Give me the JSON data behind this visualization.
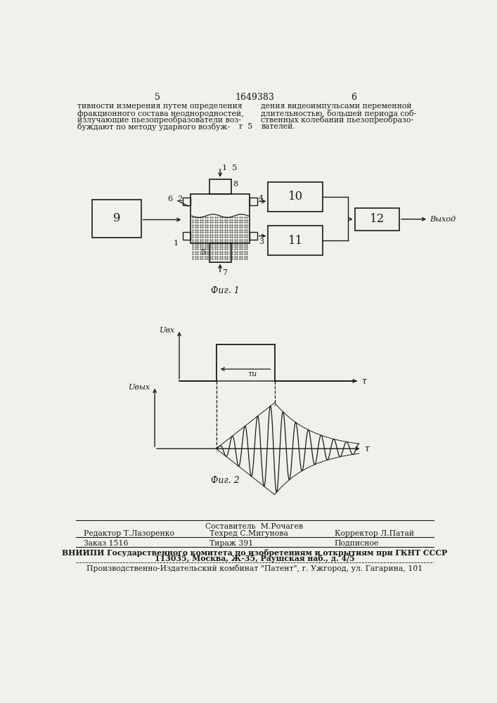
{
  "page_color": "#f2f0ec",
  "text_color": "#1a1a1a",
  "title_text": "1649383",
  "page_num_left": "5",
  "page_num_right": "6",
  "fig1_caption": "Фиг. 1",
  "fig2_caption": "Фиг. 2",
  "header_left_lines": [
    "тивности измерения путем определения",
    "фракционного состава неоднородностей,",
    "излучающие пьезопреобразователи воз-",
    "буждают по методу ударного возбуж-"
  ],
  "header_right_lines": [
    "дения видеоимпульсами переменной",
    "длительностью, большей периода соб-",
    "ственных колебаний пьезопреобразо-",
    "вателей."
  ]
}
